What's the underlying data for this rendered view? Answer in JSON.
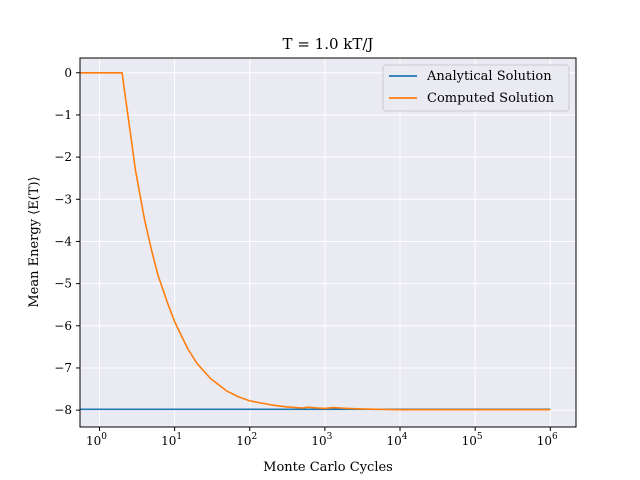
{
  "chart_data": {
    "type": "line",
    "title": "T = 1.0 kT/J",
    "xlabel": "Monte Carlo Cycles",
    "ylabel": "Mean Energy ⟨E(T)⟩",
    "xscale": "log",
    "xlim": [
      0.55,
      2200000
    ],
    "ylim": [
      -8.4,
      0.35
    ],
    "x_ticks": [
      {
        "value": 1,
        "label": "10",
        "exp": "0"
      },
      {
        "value": 10,
        "label": "10",
        "exp": "1"
      },
      {
        "value": 100,
        "label": "10",
        "exp": "2"
      },
      {
        "value": 1000,
        "label": "10",
        "exp": "3"
      },
      {
        "value": 10000,
        "label": "10",
        "exp": "4"
      },
      {
        "value": 100000,
        "label": "10",
        "exp": "5"
      },
      {
        "value": 1000000,
        "label": "10",
        "exp": "6"
      }
    ],
    "y_ticks": [
      {
        "value": 0,
        "label": "0"
      },
      {
        "value": -1,
        "label": "−1"
      },
      {
        "value": -2,
        "label": "−2"
      },
      {
        "value": -3,
        "label": "−3"
      },
      {
        "value": -4,
        "label": "−4"
      },
      {
        "value": -5,
        "label": "−5"
      },
      {
        "value": -6,
        "label": "−6"
      },
      {
        "value": -7,
        "label": "−7"
      },
      {
        "value": -8,
        "label": "−8"
      }
    ],
    "grid": true,
    "legend_position": "top-right",
    "series": [
      {
        "name": "Analytical Solution",
        "color": "#1f77b4",
        "x": [
          0.55,
          1000000
        ],
        "y": [
          -7.98,
          -7.98
        ]
      },
      {
        "name": "Computed Solution",
        "color": "#ff7f0e",
        "x": [
          0.55,
          1,
          2,
          3,
          4,
          5,
          6,
          8,
          10,
          15,
          20,
          30,
          50,
          70,
          100,
          200,
          300,
          500,
          600,
          800,
          1000,
          1300,
          1600,
          2000,
          3000,
          5000,
          10000,
          100000,
          1000000
        ],
        "y": [
          0,
          0,
          0,
          -2.3,
          -3.5,
          -4.25,
          -4.8,
          -5.45,
          -5.9,
          -6.55,
          -6.9,
          -7.25,
          -7.55,
          -7.68,
          -7.78,
          -7.88,
          -7.92,
          -7.95,
          -7.93,
          -7.95,
          -7.96,
          -7.94,
          -7.95,
          -7.96,
          -7.97,
          -7.98,
          -7.99,
          -7.99,
          -7.99
        ]
      }
    ]
  }
}
